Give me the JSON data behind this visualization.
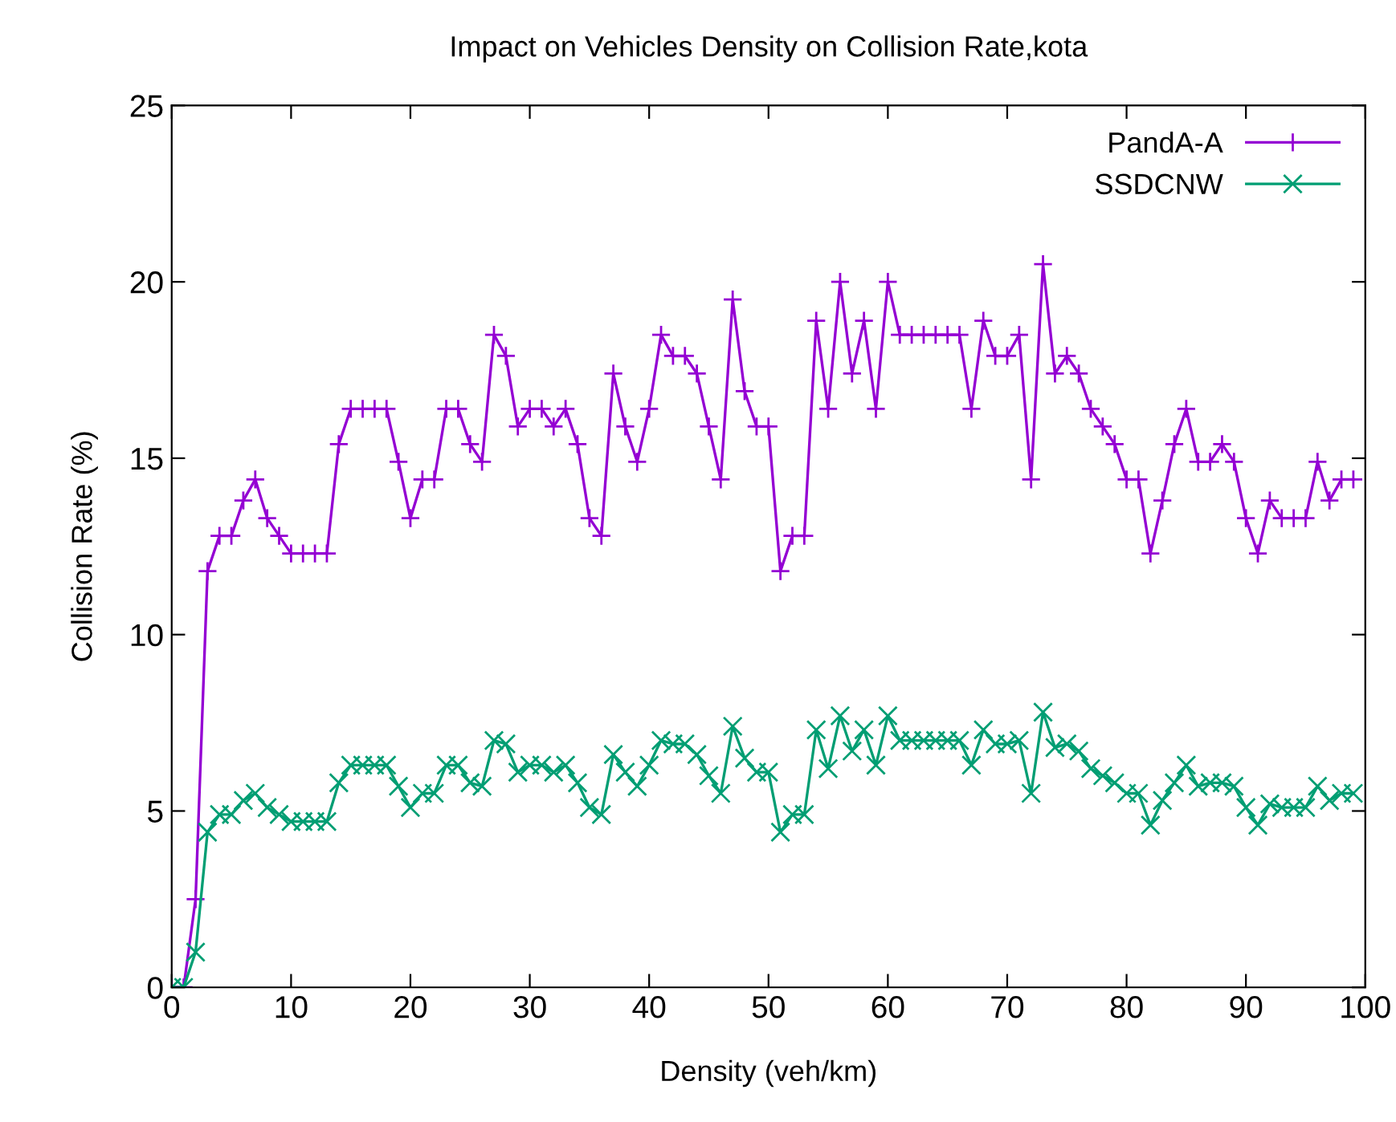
{
  "chart_data": {
    "type": "line",
    "title": "Impact on Vehicles Density on Collision Rate,kota",
    "xlabel": "Density (veh/km)",
    "ylabel": "Collision Rate (%)",
    "x": [
      0,
      1,
      2,
      3,
      4,
      5,
      6,
      7,
      8,
      9,
      10,
      11,
      12,
      13,
      14,
      15,
      16,
      17,
      18,
      19,
      20,
      21,
      22,
      23,
      24,
      25,
      26,
      27,
      28,
      29,
      30,
      31,
      32,
      33,
      34,
      35,
      36,
      37,
      38,
      39,
      40,
      41,
      42,
      43,
      44,
      45,
      46,
      47,
      48,
      49,
      50,
      51,
      52,
      53,
      54,
      55,
      56,
      57,
      58,
      59,
      60,
      61,
      62,
      63,
      64,
      65,
      66,
      67,
      68,
      69,
      70,
      71,
      72,
      73,
      74,
      75,
      76,
      77,
      78,
      79,
      80,
      81,
      82,
      83,
      84,
      85,
      86,
      87,
      88,
      89,
      90,
      91,
      92,
      93,
      94,
      95,
      96,
      97,
      98,
      99
    ],
    "series": [
      {
        "name": "PandA-A",
        "color": "#9400d3",
        "marker": "plus",
        "values": [
          0,
          0,
          2.5,
          11.8,
          12.8,
          12.8,
          13.8,
          14.4,
          13.3,
          12.8,
          12.3,
          12.3,
          12.3,
          12.3,
          15.4,
          16.4,
          16.4,
          16.4,
          16.4,
          14.9,
          13.3,
          14.4,
          14.4,
          16.4,
          16.4,
          15.4,
          14.9,
          18.5,
          17.9,
          15.9,
          16.4,
          16.4,
          15.9,
          16.4,
          15.4,
          13.3,
          12.8,
          17.4,
          15.9,
          14.9,
          16.4,
          18.5,
          17.9,
          17.9,
          17.4,
          15.9,
          14.4,
          19.5,
          16.9,
          15.9,
          15.9,
          11.8,
          12.8,
          12.8,
          18.9,
          16.4,
          20.0,
          17.4,
          18.9,
          16.4,
          20.0,
          18.5,
          18.5,
          18.5,
          18.5,
          18.5,
          18.5,
          16.4,
          18.9,
          17.9,
          17.9,
          18.5,
          14.4,
          20.5,
          17.4,
          17.9,
          17.4,
          16.4,
          15.9,
          15.4,
          14.4,
          14.4,
          12.3,
          13.8,
          15.4,
          16.4,
          14.9,
          14.9,
          15.4,
          14.9,
          13.3,
          12.3,
          13.8,
          13.3,
          13.3,
          13.3,
          14.9,
          13.8,
          14.4,
          14.4
        ]
      },
      {
        "name": "SSDCNW",
        "color": "#009e73",
        "marker": "cross",
        "values": [
          0,
          0,
          1.0,
          4.4,
          4.9,
          4.9,
          5.3,
          5.5,
          5.1,
          4.9,
          4.7,
          4.7,
          4.7,
          4.7,
          5.8,
          6.3,
          6.3,
          6.3,
          6.3,
          5.7,
          5.1,
          5.5,
          5.5,
          6.3,
          6.3,
          5.8,
          5.7,
          7.0,
          6.9,
          6.1,
          6.3,
          6.3,
          6.1,
          6.3,
          5.8,
          5.1,
          4.9,
          6.6,
          6.1,
          5.7,
          6.3,
          7.0,
          6.9,
          6.9,
          6.6,
          6.0,
          5.5,
          7.4,
          6.5,
          6.1,
          6.1,
          4.4,
          4.9,
          4.9,
          7.3,
          6.2,
          7.7,
          6.7,
          7.3,
          6.3,
          7.7,
          7.0,
          7.0,
          7.0,
          7.0,
          7.0,
          7.0,
          6.3,
          7.3,
          6.9,
          6.9,
          7.0,
          5.5,
          7.8,
          6.8,
          6.9,
          6.7,
          6.2,
          6.0,
          5.8,
          5.5,
          5.5,
          4.6,
          5.3,
          5.8,
          6.3,
          5.7,
          5.8,
          5.8,
          5.7,
          5.1,
          4.6,
          5.2,
          5.1,
          5.1,
          5.1,
          5.7,
          5.3,
          5.5,
          5.5
        ]
      }
    ],
    "xlim": [
      0,
      100
    ],
    "xticks": [
      0,
      10,
      20,
      30,
      40,
      50,
      60,
      70,
      80,
      90,
      100
    ],
    "ylim": [
      0,
      25
    ],
    "yticks": [
      0,
      5,
      10,
      15,
      20,
      25
    ],
    "legend": "top right",
    "line_style": "solid"
  }
}
